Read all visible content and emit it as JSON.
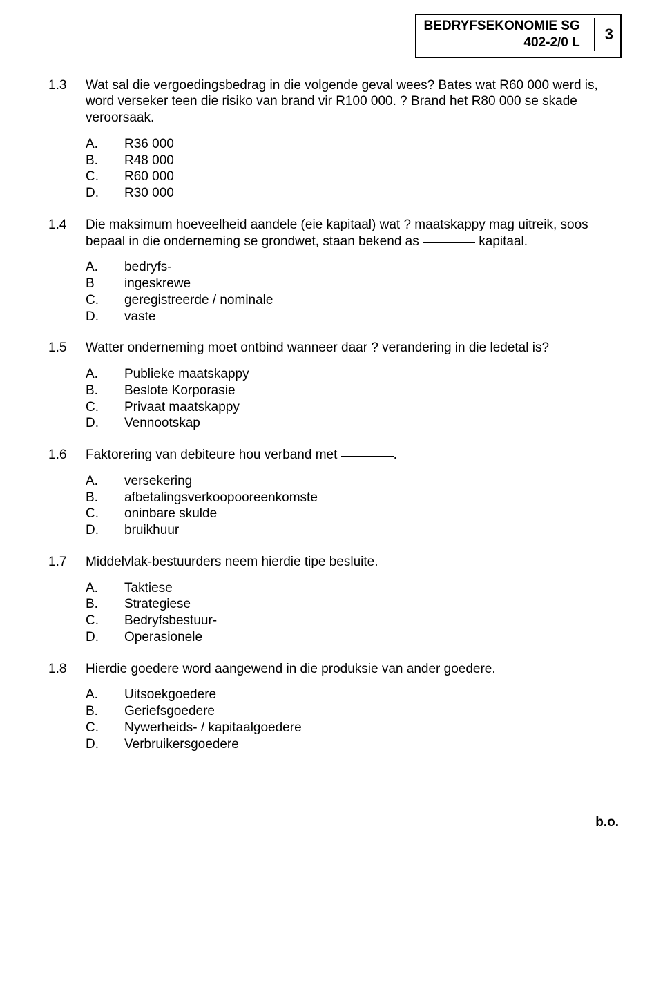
{
  "header": {
    "title": "BEDRYFSEKONOMIE  SG",
    "code": "402-2/0 L",
    "page": "3"
  },
  "questions": [
    {
      "number": "1.3",
      "text": "Wat sal die vergoedingsbedrag in die volgende geval wees?  Bates wat R60 000 werd is, word verseker teen die risiko van brand vir R100 000.  ?  Brand het R80 000 se skade veroorsaak.",
      "options": [
        {
          "label": "A.",
          "text": "R36 000"
        },
        {
          "label": "B.",
          "text": "R48 000"
        },
        {
          "label": "C.",
          "text": "R60 000"
        },
        {
          "label": "D.",
          "text": "R30 000"
        }
      ]
    },
    {
      "number": "1.4",
      "text_pre": "Die maksimum hoeveelheid aandele (eie kapitaal) wat ? maatskappy mag uitreik, soos bepaal in die onderneming se grondwet, staan bekend as ",
      "text_post": " kapitaal.",
      "options": [
        {
          "label": "A.",
          "text": "bedryfs-"
        },
        {
          "label": "B",
          "text": "ingeskrewe"
        },
        {
          "label": "C.",
          "text": "geregistreerde / nominale"
        },
        {
          "label": "D.",
          "text": "vaste"
        }
      ]
    },
    {
      "number": "1.5",
      "text": "Watter onderneming moet ontbind wanneer daar ? verandering in die ledetal is?",
      "options": [
        {
          "label": "A.",
          "text": "Publieke maatskappy"
        },
        {
          "label": "B.",
          "text": "Beslote Korporasie"
        },
        {
          "label": "C.",
          "text": "Privaat maatskappy"
        },
        {
          "label": "D.",
          "text": "Vennootskap"
        }
      ]
    },
    {
      "number": "1.6",
      "text_pre": "Faktorering van debiteure hou verband met ",
      "text_post": ".",
      "options": [
        {
          "label": "A.",
          "text": "versekering"
        },
        {
          "label": "B.",
          "text": "afbetalingsverkoopooreenkomste"
        },
        {
          "label": "C.",
          "text": "oninbare skulde"
        },
        {
          "label": "D.",
          "text": "bruikhuur"
        }
      ]
    },
    {
      "number": "1.7",
      "text": "Middelvlak-bestuurders neem hierdie tipe besluite.",
      "options": [
        {
          "label": "A.",
          "text": "Taktiese"
        },
        {
          "label": "B.",
          "text": "Strategiese"
        },
        {
          "label": "C.",
          "text": "Bedryfsbestuur-"
        },
        {
          "label": "D.",
          "text": "Operasionele"
        }
      ]
    },
    {
      "number": "1.8",
      "text": "Hierdie goedere word aangewend in die produksie van ander goedere.",
      "options": [
        {
          "label": "A.",
          "text": "Uitsoekgoedere"
        },
        {
          "label": "B.",
          "text": "Geriefsgoedere"
        },
        {
          "label": "C.",
          "text": "Nywerheids- / kapitaalgoedere"
        },
        {
          "label": "D.",
          "text": "Verbruikersgoedere"
        }
      ]
    }
  ],
  "footer": "b.o."
}
